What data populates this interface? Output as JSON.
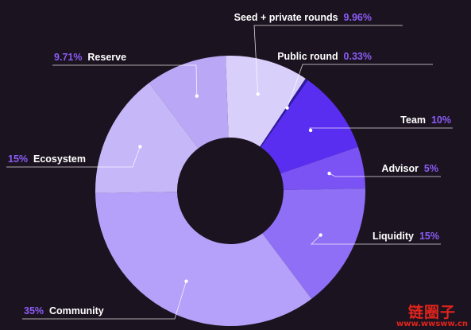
{
  "chart_data": {
    "type": "pie",
    "donut": true,
    "slices": [
      {
        "name": "Seed + private rounds",
        "label": "9.96%",
        "value": 9.96,
        "color": "#d9cffb"
      },
      {
        "name": "Public round",
        "label": "0.33%",
        "value": 0.33,
        "color": "#2f1aa6"
      },
      {
        "name": "Team",
        "label": "10%",
        "value": 10,
        "color": "#5a2ef0"
      },
      {
        "name": "Advisor",
        "label": "5%",
        "value": 5,
        "color": "#7b53f4"
      },
      {
        "name": "Liquidity",
        "label": "15%",
        "value": 15,
        "color": "#8e6ff5"
      },
      {
        "name": "Community",
        "label": "35%",
        "value": 35,
        "color": "#b5a1f9"
      },
      {
        "name": "Ecosystem",
        "label": "15%",
        "value": 15,
        "color": "#c6b7f9"
      },
      {
        "name": "Reserve",
        "label": "9.71%",
        "value": 9.71,
        "color": "#baa8f7"
      }
    ],
    "label_color": "#ffffff",
    "percent_color": "#8b5cf6",
    "background": "#1c1320"
  },
  "watermark": {
    "logo_text": "链圈子",
    "url": "www.wwsww.cn",
    "color": "#e0241c"
  }
}
